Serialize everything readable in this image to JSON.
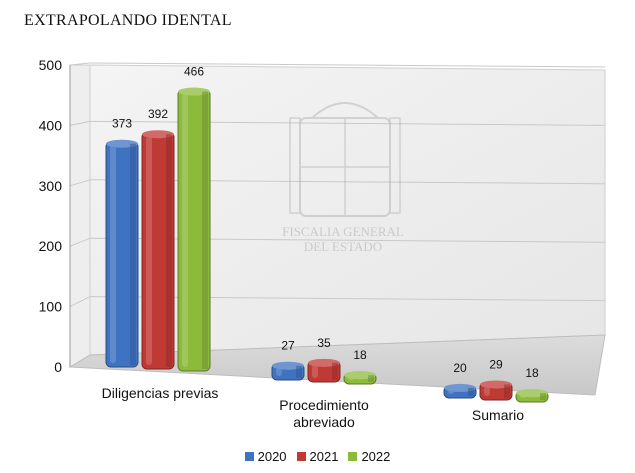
{
  "title": "EXTRAPOLANDO IDENTAL",
  "watermark": {
    "line1": "FISCALIA GENERAL",
    "line2": "DEL ESTADO"
  },
  "chart_data": {
    "type": "bar",
    "categories": [
      "Diligencias previas",
      "Procedimiento\nabreviado",
      "Sumario"
    ],
    "series": [
      {
        "name": "2020",
        "values": [
          373,
          27,
          20
        ],
        "color": "#3f73c2"
      },
      {
        "name": "2021",
        "values": [
          392,
          35,
          29
        ],
        "color": "#c03a35"
      },
      {
        "name": "2022",
        "values": [
          466,
          18,
          18
        ],
        "color": "#8cbb3c"
      }
    ],
    "ylim": [
      0,
      500
    ],
    "yticks": [
      0,
      100,
      200,
      300,
      400,
      500
    ],
    "grid": true,
    "legend_position": "bottom",
    "data_labels": true
  }
}
